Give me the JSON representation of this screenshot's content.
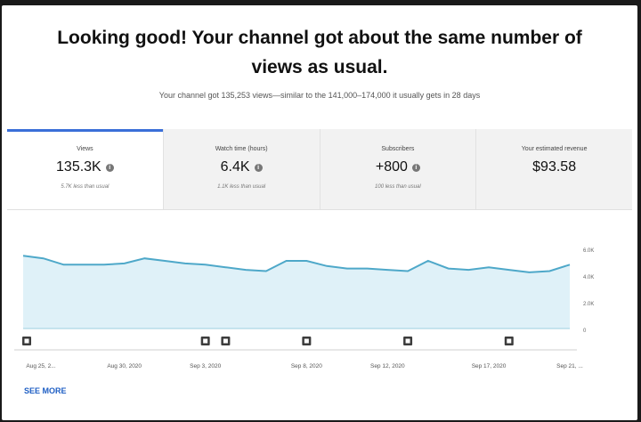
{
  "headline": {
    "line1": "Looking good! Your channel got about the same number of",
    "line2": "views as usual."
  },
  "subline": "Your channel got 135,253 views—similar to the 141,000–174,000 it usually gets in 28 days",
  "tabs": [
    {
      "label": "Views",
      "value": "135.3K",
      "sub": "5.7K less than usual",
      "active": true
    },
    {
      "label": "Watch time (hours)",
      "value": "6.4K",
      "sub": "1.1K less than usual",
      "active": false
    },
    {
      "label": "Subscribers",
      "value": "+800",
      "sub": "100 less than usual",
      "active": false
    },
    {
      "label": "Your estimated revenue",
      "value": "$93.58",
      "sub": "",
      "active": false
    }
  ],
  "chart_data": {
    "type": "area",
    "series": [
      {
        "values": [
          5.7,
          5.5,
          5.0,
          5.0,
          5.0,
          5.1,
          5.5,
          5.3,
          5.1,
          5.0,
          4.8,
          4.6,
          4.5,
          5.3,
          5.3,
          4.9,
          4.7,
          4.7,
          4.6,
          4.5,
          5.3,
          4.7,
          4.6,
          4.8,
          4.6,
          4.4,
          4.5,
          5.0
        ]
      }
    ],
    "ylim": [
      0,
      6.0
    ],
    "yticks": [
      "6.0K",
      "4.0K",
      "2.0K",
      "0"
    ],
    "xticks": [
      {
        "index": 0,
        "label": "Aug 25, 2..."
      },
      {
        "index": 5,
        "label": "Aug 30, 2020"
      },
      {
        "index": 9,
        "label": "Sep 3, 2020"
      },
      {
        "index": 14,
        "label": "Sep 8, 2020"
      },
      {
        "index": 18,
        "label": "Sep 12, 2020"
      },
      {
        "index": 23,
        "label": "Sep 17, 2020"
      },
      {
        "index": 27,
        "label": "Sep 21, ..."
      }
    ],
    "markers": [
      0,
      9,
      10,
      14,
      19,
      24
    ],
    "colors": {
      "line": "#4ea8c9",
      "fill": "#dff1f8"
    }
  },
  "see_more": "SEE MORE"
}
